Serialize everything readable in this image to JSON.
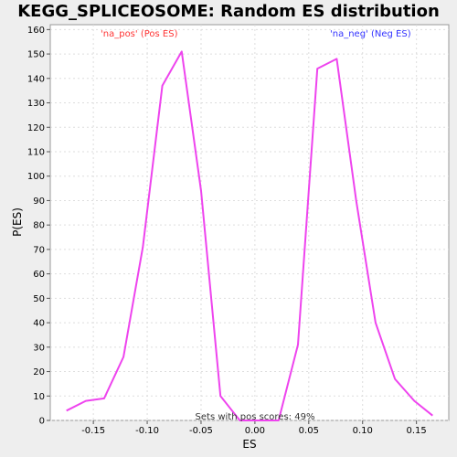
{
  "chart_data": {
    "type": "line",
    "title": "KEGG_SPLICEOSOME: Random ES distribution",
    "xlabel": "ES",
    "ylabel": "P(ES)",
    "xlim": [
      -0.19,
      0.18
    ],
    "ylim": [
      0,
      162
    ],
    "x_ticks": [
      -0.15,
      -0.1,
      -0.05,
      0.0,
      0.05,
      0.1,
      0.15
    ],
    "x_tick_labels": [
      "-0.15",
      "-0.10",
      "-0.05",
      "0.00",
      "0.05",
      "0.10",
      "0.15"
    ],
    "y_ticks": [
      0,
      10,
      20,
      30,
      40,
      50,
      60,
      70,
      80,
      90,
      100,
      110,
      120,
      130,
      140,
      150,
      160
    ],
    "y_tick_labels": [
      "0",
      "10",
      "20",
      "30",
      "40",
      "50",
      "60",
      "70",
      "80",
      "90",
      "100",
      "110",
      "120",
      "130",
      "140",
      "150",
      "160"
    ],
    "grid": true,
    "line_color": "#ee44ee",
    "pos_label_color": "#ff3333",
    "neg_label_color": "#3333ff",
    "series": [
      {
        "x": [
          -0.175,
          -0.157,
          -0.14,
          -0.122,
          -0.104,
          -0.086,
          -0.068,
          -0.05,
          -0.032,
          -0.014,
          0.004,
          0.022,
          0.04,
          0.058,
          0.076,
          0.094,
          0.112,
          0.13,
          0.148,
          0.165
        ],
        "y": [
          4,
          8,
          9,
          26,
          71,
          137,
          151,
          94,
          10,
          0,
          0,
          0,
          31,
          144,
          148,
          90,
          40,
          17,
          8,
          2
        ]
      }
    ],
    "legend_pos": "'na_pos' (Pos ES)",
    "legend_neg": "'na_neg' (Neg ES)",
    "annotation": "Sets with pos scores: 49%"
  }
}
